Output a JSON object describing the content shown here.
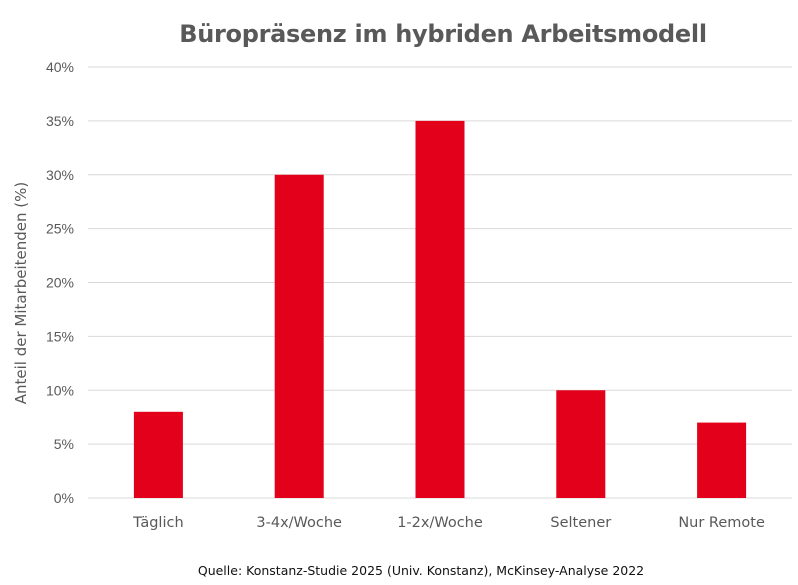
{
  "chart_data": {
    "type": "bar",
    "title": "Büropräsenz im hybriden Arbeitsmodell",
    "xlabel": "",
    "ylabel": "Anteil der Mitarbeitenden (%)",
    "categories": [
      "Täglich",
      "3-4x/Woche",
      "1-2x/Woche",
      "Seltener",
      "Nur Remote"
    ],
    "values": [
      8,
      30,
      35,
      10,
      7
    ],
    "ylim": [
      0,
      40
    ],
    "yticks": [
      0,
      5,
      10,
      15,
      20,
      25,
      30,
      35,
      40
    ],
    "ytick_labels": [
      "0%",
      "5%",
      "10%",
      "15%",
      "20%",
      "25%",
      "30%",
      "35%",
      "40%"
    ],
    "grid": true,
    "bar_color": "#e3001b",
    "source": "Quelle: Konstanz-Studie 2025 (Univ. Konstanz), McKinsey-Analyse 2022"
  }
}
